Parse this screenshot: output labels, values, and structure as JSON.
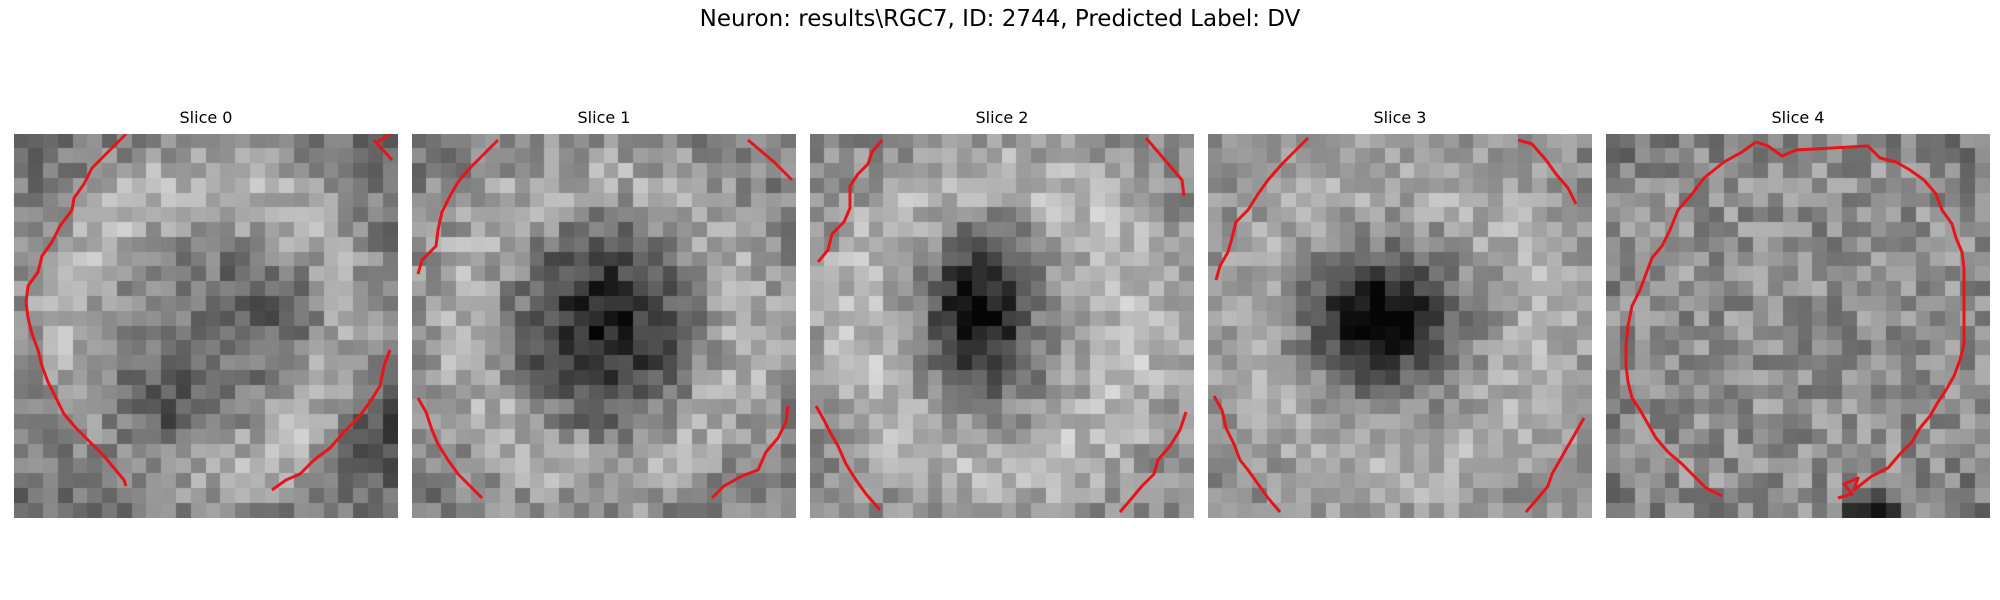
{
  "figure": {
    "title": "Neuron: results\\RGC7, ID: 2744, Predicted Label: DV",
    "colormap": "gray",
    "contour_color": "#e8141a"
  },
  "slices": [
    {
      "title": "Slice 0",
      "dark_spot": "faint, lower left"
    },
    {
      "title": "Slice 1",
      "dark_spot": "center"
    },
    {
      "title": "Slice 2",
      "dark_spot": "center"
    },
    {
      "title": "Slice 3",
      "dark_spot": "center"
    },
    {
      "title": "Slice 4",
      "dark_spot": "none"
    }
  ]
}
